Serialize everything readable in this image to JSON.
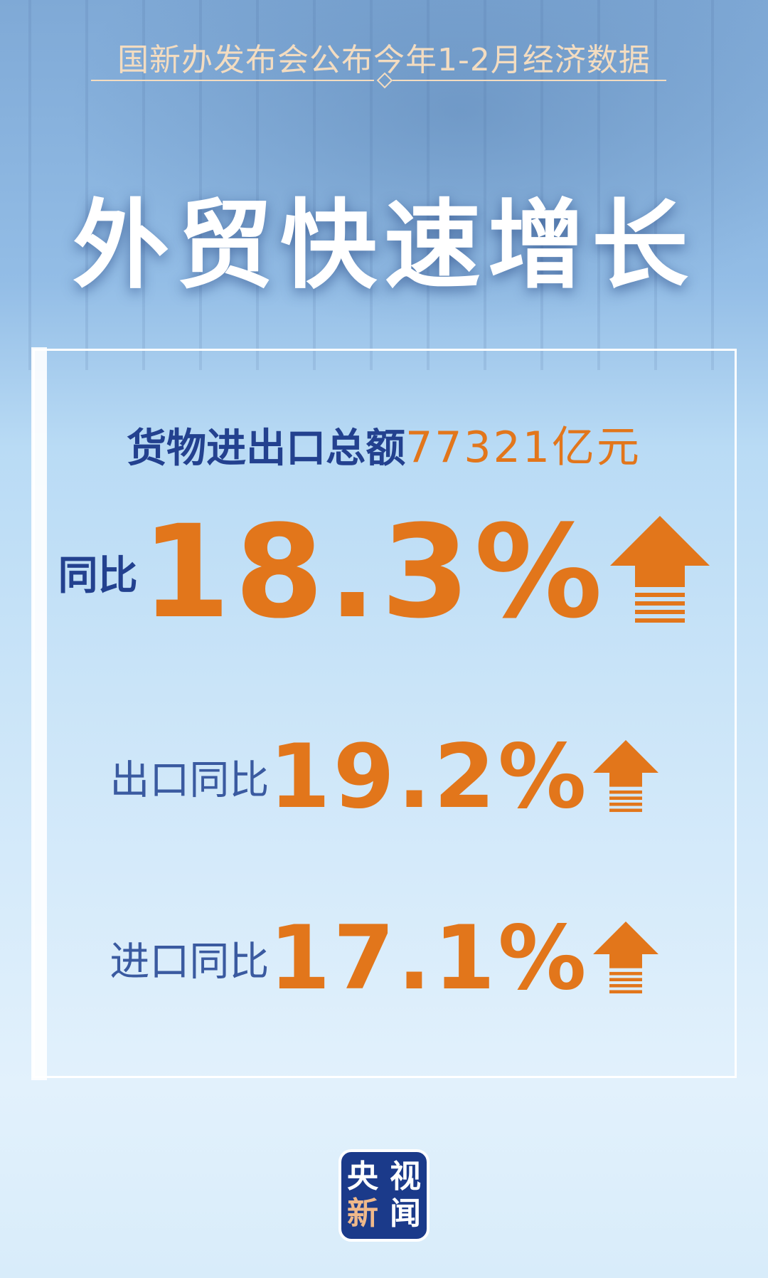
{
  "header": {
    "subtitle": "国新办发布会公布今年1-2月经济数据",
    "title": "外贸快速增长"
  },
  "total": {
    "label": "货物进出口总额",
    "value": "77321亿元"
  },
  "yoy": {
    "label": "同比",
    "value": "18.3%",
    "direction": "up"
  },
  "export": {
    "label": "出口同比",
    "value": "19.2%",
    "direction": "up"
  },
  "import": {
    "label": "进口同比",
    "value": "17.1%",
    "direction": "up"
  },
  "logo": {
    "chars": [
      "央",
      "视",
      "新",
      "闻"
    ]
  },
  "colors": {
    "accent": "#e2761b",
    "label": "#23418f",
    "logo_bg": "#1b3a8a",
    "logo_highlight": "#f0b98a"
  }
}
